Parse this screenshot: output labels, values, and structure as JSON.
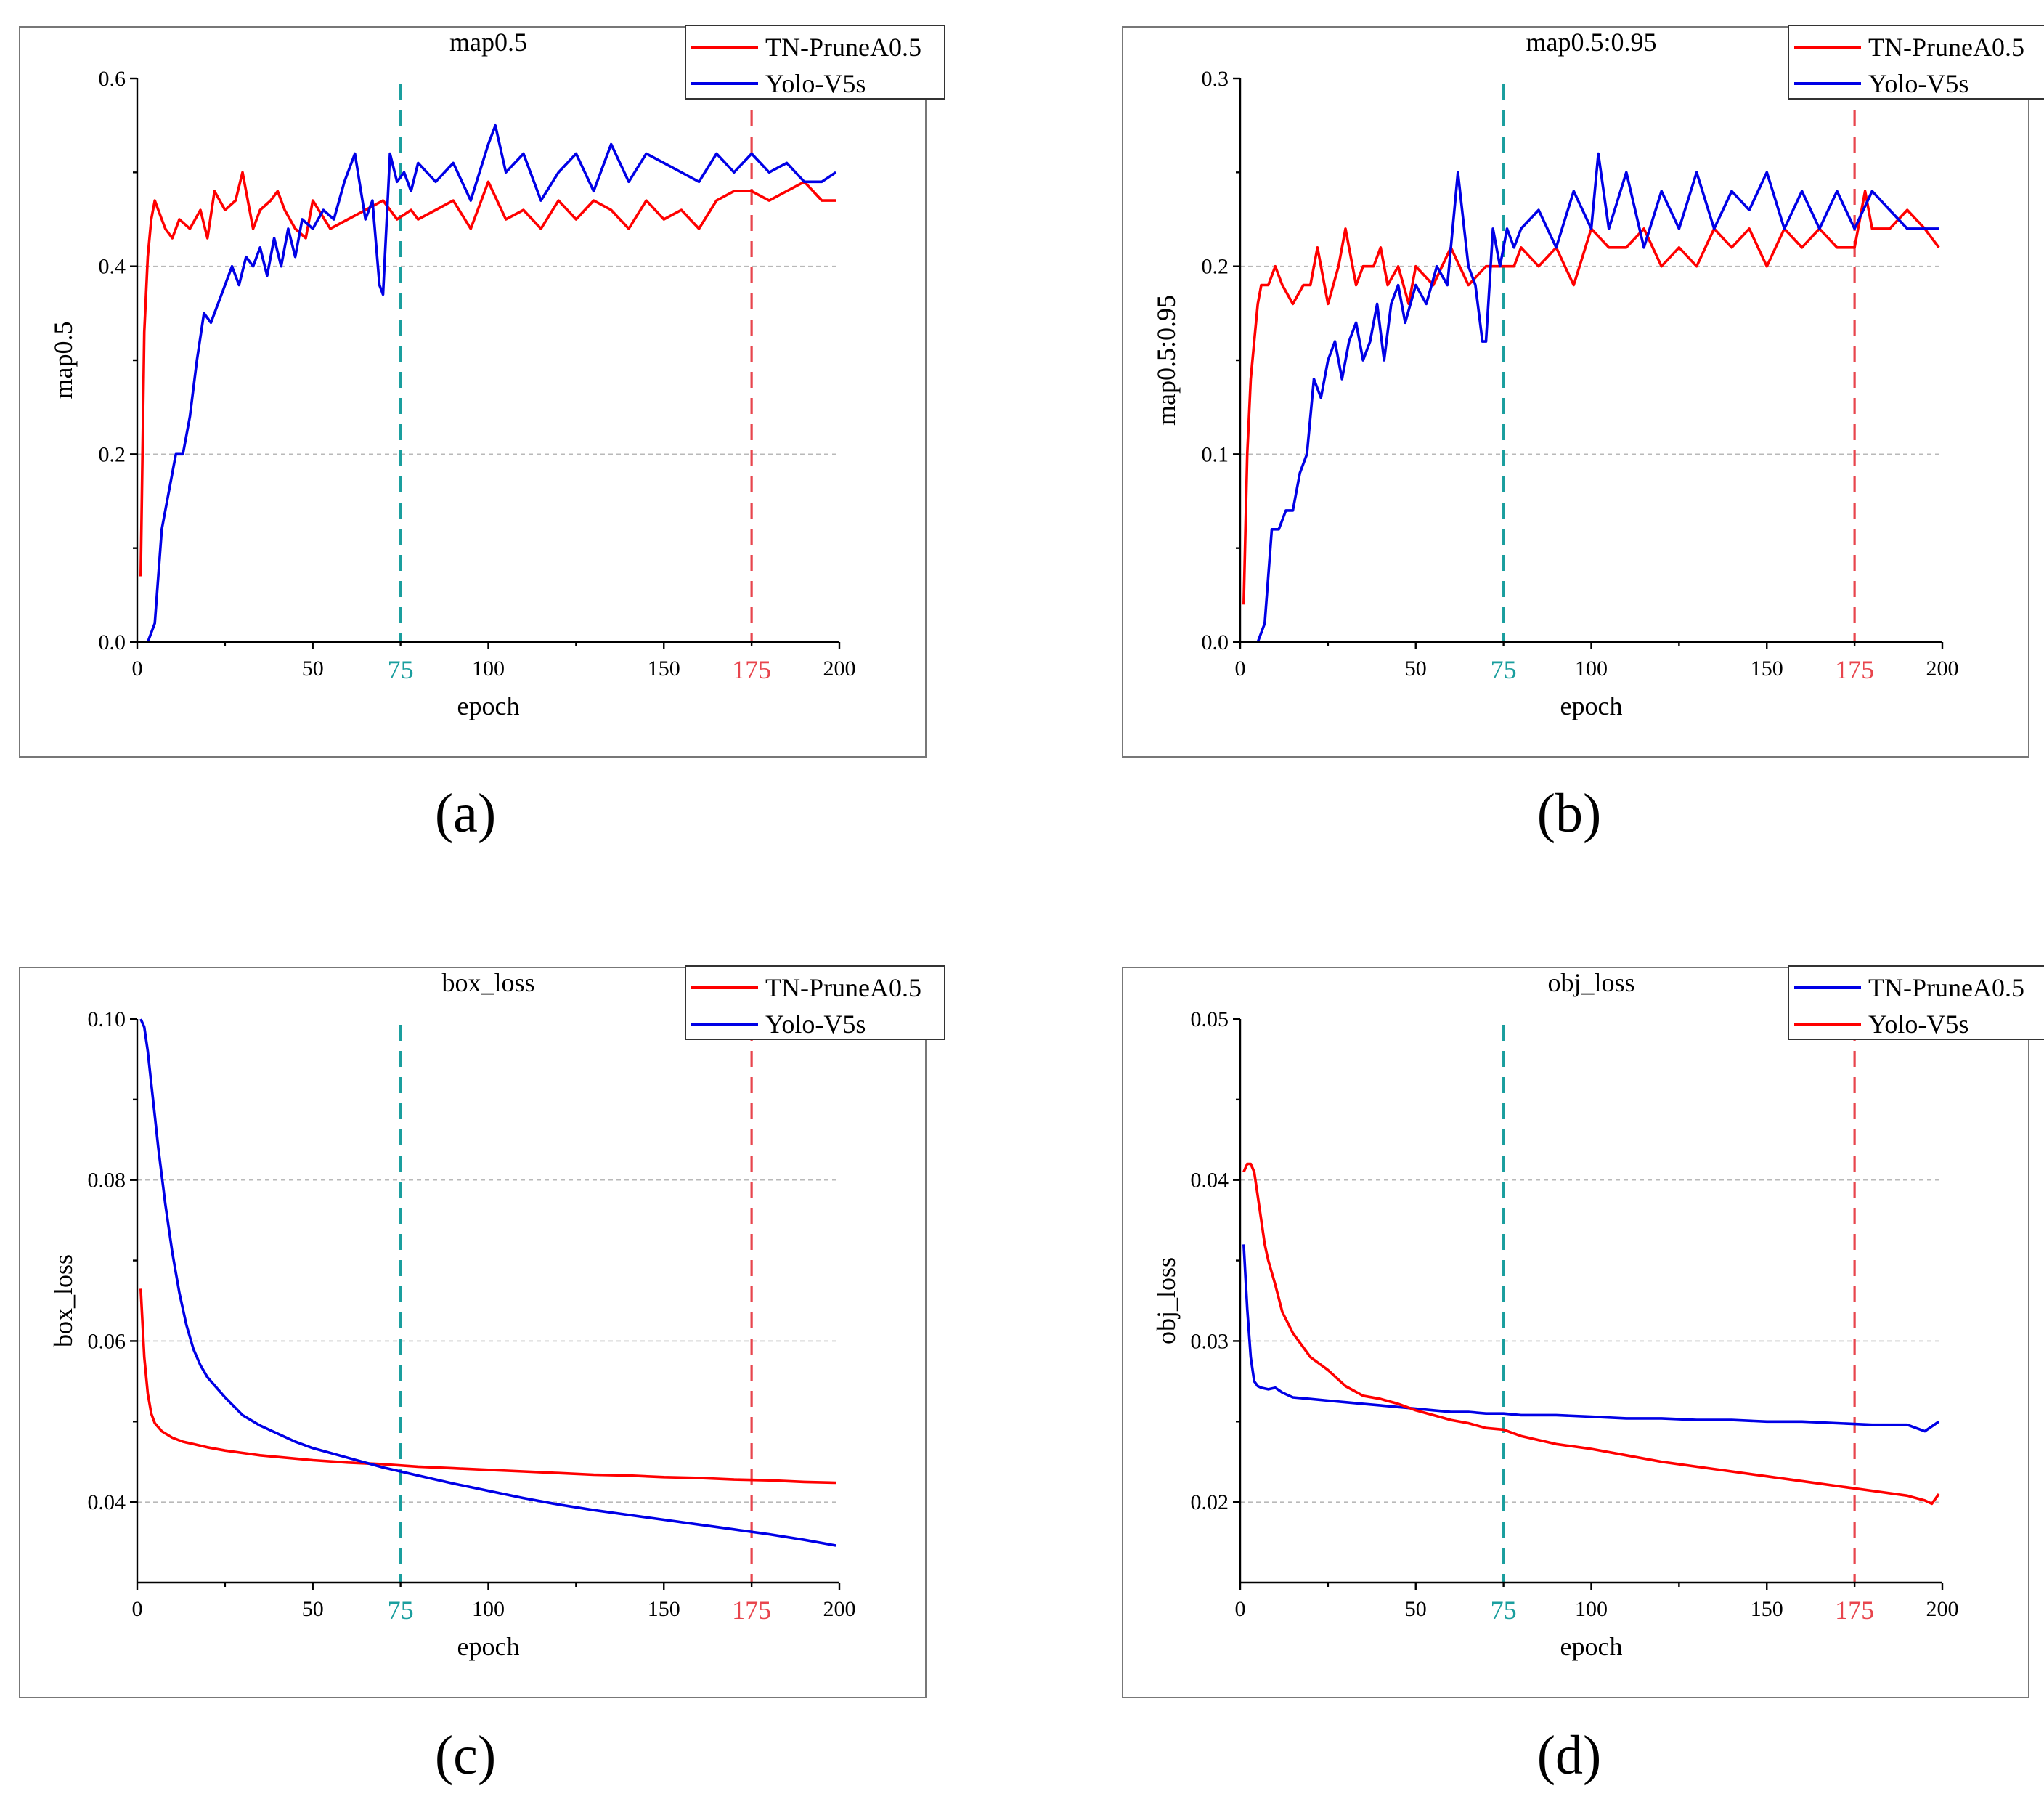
{
  "figure": {
    "colors": {
      "red": "#ff0000",
      "blue": "#0000e6",
      "teal": "#1a9e9e",
      "pink": "#e8454d"
    },
    "panels": [
      {
        "id": "a",
        "label": "(a)"
      },
      {
        "id": "b",
        "label": "(b)"
      },
      {
        "id": "c",
        "label": "(c)"
      },
      {
        "id": "d",
        "label": "(d)"
      }
    ]
  },
  "chart_data": [
    {
      "panel": "a",
      "type": "line",
      "title": "map0.5",
      "xlabel": "epoch",
      "ylabel": "map0.5",
      "xlim": [
        0,
        200
      ],
      "ylim": [
        0.0,
        0.6
      ],
      "xticks": [
        0,
        50,
        100,
        150,
        200
      ],
      "yticks": [
        0.0,
        0.2,
        0.4,
        0.6
      ],
      "ytick_labels": [
        "0.0",
        "0.2",
        "0.4",
        "0.6"
      ],
      "grid": "horizontal-dashed",
      "legend_position": "top-right",
      "markers": [
        {
          "x": 75,
          "label": "75",
          "color": "#1a9e9e"
        },
        {
          "x": 175,
          "label": "175",
          "color": "#e8454d"
        }
      ],
      "series": [
        {
          "name": "TN-PruneA0.5",
          "color": "#ff0000",
          "x": [
            1,
            2,
            3,
            4,
            5,
            6,
            7,
            8,
            10,
            12,
            15,
            18,
            20,
            22,
            25,
            28,
            30,
            33,
            35,
            38,
            40,
            42,
            45,
            48,
            50,
            55,
            60,
            65,
            70,
            74,
            78,
            80,
            85,
            90,
            95,
            100,
            105,
            110,
            115,
            120,
            125,
            130,
            135,
            140,
            145,
            150,
            155,
            160,
            165,
            170,
            175,
            180,
            185,
            190,
            195,
            199
          ],
          "y": [
            0.07,
            0.33,
            0.41,
            0.45,
            0.47,
            0.46,
            0.45,
            0.44,
            0.43,
            0.45,
            0.44,
            0.46,
            0.43,
            0.48,
            0.46,
            0.47,
            0.5,
            0.44,
            0.46,
            0.47,
            0.48,
            0.46,
            0.44,
            0.43,
            0.47,
            0.44,
            0.45,
            0.46,
            0.47,
            0.45,
            0.46,
            0.45,
            0.46,
            0.47,
            0.44,
            0.49,
            0.45,
            0.46,
            0.44,
            0.47,
            0.45,
            0.47,
            0.46,
            0.44,
            0.47,
            0.45,
            0.46,
            0.44,
            0.47,
            0.48,
            0.48,
            0.47,
            0.48,
            0.49,
            0.47,
            0.47
          ]
        },
        {
          "name": "Yolo-V5s",
          "color": "#0000e6",
          "x": [
            1,
            3,
            5,
            7,
            9,
            11,
            13,
            15,
            17,
            19,
            21,
            23,
            25,
            27,
            29,
            31,
            33,
            35,
            37,
            39,
            41,
            43,
            45,
            47,
            50,
            53,
            56,
            59,
            62,
            65,
            67,
            69,
            70,
            72,
            74,
            76,
            78,
            80,
            85,
            90,
            95,
            100,
            102,
            105,
            110,
            115,
            120,
            125,
            130,
            135,
            140,
            145,
            150,
            155,
            160,
            165,
            170,
            175,
            180,
            185,
            190,
            195,
            199
          ],
          "y": [
            0.0,
            0.0,
            0.02,
            0.12,
            0.16,
            0.2,
            0.2,
            0.24,
            0.3,
            0.35,
            0.34,
            0.36,
            0.38,
            0.4,
            0.38,
            0.41,
            0.4,
            0.42,
            0.39,
            0.43,
            0.4,
            0.44,
            0.41,
            0.45,
            0.44,
            0.46,
            0.45,
            0.49,
            0.52,
            0.45,
            0.47,
            0.38,
            0.37,
            0.52,
            0.49,
            0.5,
            0.48,
            0.51,
            0.49,
            0.51,
            0.47,
            0.53,
            0.55,
            0.5,
            0.52,
            0.47,
            0.5,
            0.52,
            0.48,
            0.53,
            0.49,
            0.52,
            0.51,
            0.5,
            0.49,
            0.52,
            0.5,
            0.52,
            0.5,
            0.51,
            0.49,
            0.49,
            0.5
          ]
        }
      ]
    },
    {
      "panel": "b",
      "type": "line",
      "title": "map0.5:0.95",
      "xlabel": "epoch",
      "ylabel": "map0.5:0.95",
      "xlim": [
        0,
        200
      ],
      "ylim": [
        0.0,
        0.3
      ],
      "xticks": [
        0,
        50,
        100,
        150,
        200
      ],
      "yticks": [
        0.0,
        0.1,
        0.2,
        0.3
      ],
      "ytick_labels": [
        "0.0",
        "0.1",
        "0.2",
        "0.3"
      ],
      "grid": "horizontal-dashed",
      "legend_position": "top-right",
      "markers": [
        {
          "x": 75,
          "label": "75",
          "color": "#1a9e9e"
        },
        {
          "x": 175,
          "label": "175",
          "color": "#e8454d"
        }
      ],
      "series": [
        {
          "name": "TN-PruneA0.5",
          "color": "#ff0000",
          "x": [
            1,
            2,
            3,
            4,
            5,
            6,
            7,
            8,
            10,
            12,
            15,
            18,
            20,
            22,
            25,
            28,
            30,
            33,
            35,
            38,
            40,
            42,
            45,
            48,
            50,
            55,
            60,
            65,
            70,
            74,
            78,
            80,
            85,
            90,
            95,
            100,
            105,
            110,
            115,
            120,
            125,
            130,
            135,
            140,
            145,
            150,
            155,
            160,
            165,
            170,
            175,
            178,
            180,
            185,
            190,
            195,
            199
          ],
          "y": [
            0.02,
            0.1,
            0.14,
            0.16,
            0.18,
            0.19,
            0.19,
            0.19,
            0.2,
            0.19,
            0.18,
            0.19,
            0.19,
            0.21,
            0.18,
            0.2,
            0.22,
            0.19,
            0.2,
            0.2,
            0.21,
            0.19,
            0.2,
            0.18,
            0.2,
            0.19,
            0.21,
            0.19,
            0.2,
            0.2,
            0.2,
            0.21,
            0.2,
            0.21,
            0.19,
            0.22,
            0.21,
            0.21,
            0.22,
            0.2,
            0.21,
            0.2,
            0.22,
            0.21,
            0.22,
            0.2,
            0.22,
            0.21,
            0.22,
            0.21,
            0.21,
            0.24,
            0.22,
            0.22,
            0.23,
            0.22,
            0.21
          ]
        },
        {
          "name": "Yolo-V5s",
          "color": "#0000e6",
          "x": [
            1,
            3,
            5,
            7,
            9,
            11,
            13,
            15,
            17,
            19,
            21,
            23,
            25,
            27,
            29,
            31,
            33,
            35,
            37,
            39,
            41,
            43,
            45,
            47,
            50,
            53,
            56,
            59,
            62,
            65,
            67,
            69,
            70,
            72,
            74,
            76,
            78,
            80,
            85,
            90,
            95,
            100,
            102,
            105,
            110,
            115,
            120,
            125,
            130,
            135,
            140,
            145,
            150,
            155,
            160,
            165,
            170,
            175,
            180,
            185,
            190,
            195,
            199
          ],
          "y": [
            0.0,
            0.0,
            0.0,
            0.01,
            0.06,
            0.06,
            0.07,
            0.07,
            0.09,
            0.1,
            0.14,
            0.13,
            0.15,
            0.16,
            0.14,
            0.16,
            0.17,
            0.15,
            0.16,
            0.18,
            0.15,
            0.18,
            0.19,
            0.17,
            0.19,
            0.18,
            0.2,
            0.19,
            0.25,
            0.2,
            0.19,
            0.16,
            0.16,
            0.22,
            0.2,
            0.22,
            0.21,
            0.22,
            0.23,
            0.21,
            0.24,
            0.22,
            0.26,
            0.22,
            0.25,
            0.21,
            0.24,
            0.22,
            0.25,
            0.22,
            0.24,
            0.23,
            0.25,
            0.22,
            0.24,
            0.22,
            0.24,
            0.22,
            0.24,
            0.23,
            0.22,
            0.22,
            0.22
          ]
        }
      ]
    },
    {
      "panel": "c",
      "type": "line",
      "title": "box_loss",
      "xlabel": "epoch",
      "ylabel": "box_loss",
      "xlim": [
        0,
        200
      ],
      "ylim": [
        0.03,
        0.1
      ],
      "xticks": [
        0,
        50,
        100,
        150,
        200
      ],
      "yticks": [
        0.04,
        0.06,
        0.08,
        0.1
      ],
      "ytick_labels": [
        "0.04",
        "0.06",
        "0.08",
        "0.10"
      ],
      "grid": "horizontal-dashed",
      "legend_position": "top-right",
      "markers": [
        {
          "x": 75,
          "label": "75",
          "color": "#1a9e9e"
        },
        {
          "x": 175,
          "label": "175",
          "color": "#e8454d"
        }
      ],
      "series": [
        {
          "name": "TN-PruneA0.5",
          "color": "#ff0000",
          "x": [
            1,
            2,
            3,
            4,
            5,
            7,
            10,
            13,
            16,
            20,
            25,
            30,
            35,
            40,
            50,
            60,
            70,
            80,
            90,
            100,
            110,
            120,
            130,
            140,
            150,
            160,
            170,
            180,
            190,
            199
          ],
          "y": [
            0.0665,
            0.058,
            0.0535,
            0.051,
            0.0498,
            0.0488,
            0.048,
            0.0475,
            0.0472,
            0.0468,
            0.0464,
            0.0461,
            0.0458,
            0.0456,
            0.0452,
            0.0449,
            0.0447,
            0.0444,
            0.0442,
            0.044,
            0.0438,
            0.0436,
            0.0434,
            0.0433,
            0.0431,
            0.043,
            0.0428,
            0.0427,
            0.0425,
            0.0424
          ]
        },
        {
          "name": "Yolo-V5s",
          "color": "#0000e6",
          "x": [
            1,
            2,
            3,
            4,
            5,
            6,
            8,
            10,
            12,
            14,
            16,
            18,
            20,
            25,
            30,
            35,
            40,
            45,
            50,
            55,
            60,
            65,
            70,
            75,
            80,
            90,
            100,
            110,
            120,
            130,
            140,
            150,
            160,
            170,
            180,
            190,
            199
          ],
          "y": [
            0.1,
            0.099,
            0.096,
            0.092,
            0.088,
            0.084,
            0.077,
            0.071,
            0.066,
            0.062,
            0.059,
            0.057,
            0.0555,
            0.053,
            0.0508,
            0.0495,
            0.0485,
            0.0475,
            0.0467,
            0.0461,
            0.0455,
            0.0449,
            0.0443,
            0.0438,
            0.0433,
            0.0423,
            0.0414,
            0.0405,
            0.0397,
            0.039,
            0.0384,
            0.0378,
            0.0372,
            0.0366,
            0.036,
            0.0353,
            0.0346
          ]
        }
      ]
    },
    {
      "panel": "d",
      "type": "line",
      "title": "obj_loss",
      "xlabel": "epoch",
      "ylabel": "obj_loss",
      "xlim": [
        0,
        200
      ],
      "ylim": [
        0.015,
        0.05
      ],
      "xticks": [
        0,
        50,
        100,
        150,
        200
      ],
      "yticks": [
        0.02,
        0.03,
        0.04,
        0.05
      ],
      "ytick_labels": [
        "0.02",
        "0.03",
        "0.04",
        "0.05"
      ],
      "grid": "horizontal-dashed",
      "legend_position": "top-right",
      "markers": [
        {
          "x": 75,
          "label": "75",
          "color": "#1a9e9e"
        },
        {
          "x": 175,
          "label": "175",
          "color": "#e8454d"
        }
      ],
      "series": [
        {
          "name": "TN-PruneA0.5",
          "color": "#0000e6",
          "x": [
            1,
            2,
            3,
            4,
            5,
            6,
            8,
            10,
            12,
            15,
            20,
            25,
            30,
            35,
            40,
            45,
            50,
            55,
            60,
            65,
            70,
            75,
            80,
            90,
            100,
            110,
            120,
            130,
            140,
            150,
            160,
            170,
            180,
            190,
            195,
            199
          ],
          "y": [
            0.036,
            0.032,
            0.029,
            0.0275,
            0.0272,
            0.0271,
            0.027,
            0.0271,
            0.0268,
            0.0265,
            0.0264,
            0.0263,
            0.0262,
            0.0261,
            0.026,
            0.0259,
            0.0258,
            0.0257,
            0.0256,
            0.0256,
            0.0255,
            0.0255,
            0.0254,
            0.0254,
            0.0253,
            0.0252,
            0.0252,
            0.0251,
            0.0251,
            0.025,
            0.025,
            0.0249,
            0.0248,
            0.0248,
            0.0244,
            0.025
          ]
        },
        {
          "name": "Yolo-V5s",
          "color": "#ff0000",
          "x": [
            1,
            2,
            3,
            4,
            5,
            6,
            7,
            8,
            10,
            12,
            15,
            20,
            25,
            30,
            35,
            40,
            45,
            50,
            55,
            60,
            65,
            70,
            75,
            80,
            90,
            100,
            110,
            120,
            130,
            140,
            150,
            160,
            170,
            180,
            190,
            195,
            197,
            199
          ],
          "y": [
            0.0405,
            0.041,
            0.041,
            0.0405,
            0.039,
            0.0375,
            0.036,
            0.035,
            0.0335,
            0.0318,
            0.0305,
            0.029,
            0.0282,
            0.0272,
            0.0266,
            0.0264,
            0.0261,
            0.0257,
            0.0254,
            0.0251,
            0.0249,
            0.0246,
            0.0245,
            0.0241,
            0.0236,
            0.0233,
            0.0229,
            0.0225,
            0.0222,
            0.0219,
            0.0216,
            0.0213,
            0.021,
            0.0207,
            0.0204,
            0.0201,
            0.0199,
            0.0205
          ]
        }
      ]
    }
  ]
}
